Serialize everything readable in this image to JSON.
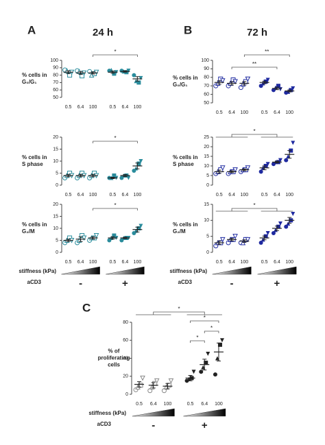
{
  "chart_data": [
    {
      "type": "scatter",
      "panel": "A",
      "title": "24 h",
      "ylabel": [
        "% cells in",
        "G₀/G₁"
      ],
      "color": "#2a8c9c",
      "categories": [
        "0.5",
        "6.4",
        "100",
        "0.5",
        "6.4",
        "100"
      ],
      "ylim": [
        50,
        100
      ],
      "yticks": [
        50,
        60,
        70,
        80,
        90,
        100
      ],
      "groups": [
        [
          87,
          86,
          80,
          84
        ],
        [
          86,
          85,
          79,
          83
        ],
        [
          85,
          80,
          82,
          84
        ],
        [
          86,
          87,
          82,
          84
        ],
        [
          86,
          85,
          84,
          86
        ],
        [
          80,
          72,
          70,
          76
        ]
      ],
      "means": [
        84,
        83,
        83,
        84,
        85,
        75
      ],
      "errors": [
        2,
        2,
        1.5,
        1.5,
        1,
        3
      ],
      "significance": [
        "*"
      ]
    },
    {
      "type": "scatter",
      "ylabel": [
        "% cells in",
        "S phase"
      ],
      "color": "#2a8c9c",
      "categories": [
        "0.5",
        "6.4",
        "100",
        "0.5",
        "6.4",
        "100"
      ],
      "ylim": [
        0,
        20
      ],
      "yticks": [
        0,
        5,
        10,
        15,
        20
      ],
      "groups": [
        [
          3,
          4,
          5,
          4
        ],
        [
          3,
          4,
          5,
          4
        ],
        [
          3,
          4,
          5,
          4
        ],
        [
          3,
          3,
          4,
          3
        ],
        [
          3,
          4,
          4,
          3
        ],
        [
          6,
          7,
          9,
          10
        ]
      ],
      "means": [
        4,
        4,
        4,
        3,
        4,
        8
      ],
      "errors": [
        0.5,
        0.5,
        0.5,
        0.3,
        0.4,
        1.2
      ],
      "significance": [
        "*"
      ]
    },
    {
      "type": "scatter",
      "ylabel": [
        "% cells in",
        "G₂/M"
      ],
      "color": "#2a8c9c",
      "categories": [
        "0.5",
        "6.4",
        "100",
        "0.5",
        "6.4",
        "100"
      ],
      "ylim": [
        0,
        20
      ],
      "yticks": [
        0,
        5,
        10,
        15,
        20
      ],
      "groups": [
        [
          4,
          5,
          6,
          5
        ],
        [
          4,
          5,
          7,
          6
        ],
        [
          5,
          6,
          6,
          7
        ],
        [
          5,
          6,
          7,
          6
        ],
        [
          5,
          6,
          6,
          6
        ],
        [
          8,
          9,
          10,
          11
        ]
      ],
      "means": [
        5,
        5.5,
        6,
        6,
        6,
        9.5
      ],
      "errors": [
        0.5,
        1,
        0.5,
        0.5,
        0.3,
        1
      ],
      "significance": [
        "*"
      ],
      "xlabel": "stiffness (kPa)",
      "group_title": "aCD3",
      "group_names": [
        "-",
        "+"
      ]
    },
    {
      "type": "scatter",
      "panel": "B",
      "title": "72 h",
      "ylabel": [
        "% cells in",
        "G₀/G₁"
      ],
      "color": "#1f2aa0",
      "categories": [
        "0.5",
        "6.4",
        "100",
        "0.5",
        "6.4",
        "100"
      ],
      "ylim": [
        50,
        100
      ],
      "yticks": [
        50,
        60,
        70,
        80,
        90,
        100
      ],
      "groups": [
        [
          70,
          73,
          78,
          76
        ],
        [
          70,
          73,
          77,
          75
        ],
        [
          68,
          72,
          75,
          78
        ],
        [
          70,
          73,
          75,
          77
        ],
        [
          65,
          68,
          70,
          66
        ],
        [
          62,
          63,
          65,
          67
        ]
      ],
      "means": [
        74,
        73,
        73,
        74,
        67,
        64
      ],
      "errors": [
        2,
        2,
        2,
        1.5,
        1.5,
        1.2
      ],
      "significance": [
        "**",
        "**"
      ]
    },
    {
      "type": "scatter",
      "ylabel": [
        "% cells in",
        "S phase"
      ],
      "color": "#1f2aa0",
      "categories": [
        "0.5",
        "6.4",
        "100",
        "0.5",
        "6.4",
        "100"
      ],
      "ylim": [
        0,
        25
      ],
      "yticks": [
        0,
        5,
        10,
        15,
        20,
        25
      ],
      "groups": [
        [
          6,
          7,
          8,
          9
        ],
        [
          6,
          7,
          7,
          8
        ],
        [
          7,
          8,
          8,
          9
        ],
        [
          7,
          9,
          10,
          11
        ],
        [
          11,
          12,
          12,
          13
        ],
        [
          13,
          15,
          18,
          22
        ]
      ],
      "means": [
        7,
        7,
        8,
        9,
        12,
        16
      ],
      "errors": [
        0.8,
        0.5,
        0.5,
        1,
        0.5,
        2
      ],
      "significance": [
        "*"
      ]
    },
    {
      "type": "scatter",
      "ylabel": [
        "% cells in",
        "G₂/M"
      ],
      "color": "#1f2aa0",
      "categories": [
        "0.5",
        "6.4",
        "100",
        "0.5",
        "6.4",
        "100"
      ],
      "ylim": [
        0,
        15
      ],
      "yticks": [
        0,
        5,
        10,
        15
      ],
      "groups": [
        [
          2,
          3,
          3,
          4
        ],
        [
          3,
          4,
          4,
          5
        ],
        [
          3,
          3,
          4,
          4
        ],
        [
          3,
          4,
          5,
          6
        ],
        [
          6,
          7,
          8,
          9
        ],
        [
          8,
          9,
          10,
          12
        ]
      ],
      "means": [
        3,
        4,
        3.5,
        4.5,
        7.5,
        10
      ],
      "errors": [
        0.5,
        0.4,
        0.4,
        0.6,
        0.7,
        0.9
      ],
      "significance": [
        "*"
      ],
      "xlabel": "stiffness (kPa)",
      "group_title": "aCD3",
      "group_names": [
        "-",
        "+"
      ]
    },
    {
      "type": "scatter",
      "panel": "C",
      "ylabel": [
        "% of",
        "proliferating",
        "cells"
      ],
      "color": "#222222",
      "categories": [
        "0.5",
        "6.4",
        "100",
        "0.5",
        "6.4",
        "100"
      ],
      "ylim": [
        0,
        80
      ],
      "yticks": [
        0,
        20,
        40,
        60,
        80
      ],
      "groups": [
        [
          5,
          8,
          10,
          18
        ],
        [
          4,
          8,
          12,
          15
        ],
        [
          4,
          8,
          10,
          15
        ],
        [
          15,
          17,
          18,
          25
        ],
        [
          25,
          30,
          35,
          45
        ],
        [
          22,
          40,
          55,
          60
        ]
      ],
      "means": [
        11,
        10,
        9,
        18,
        33,
        47
      ],
      "errors": [
        3,
        3,
        3,
        3,
        6,
        10
      ],
      "significance": [
        "*",
        "*",
        "*",
        "*"
      ],
      "xlabel": "stiffness (kPa)",
      "group_title": "aCD3",
      "group_names": [
        "-",
        "+"
      ]
    }
  ]
}
